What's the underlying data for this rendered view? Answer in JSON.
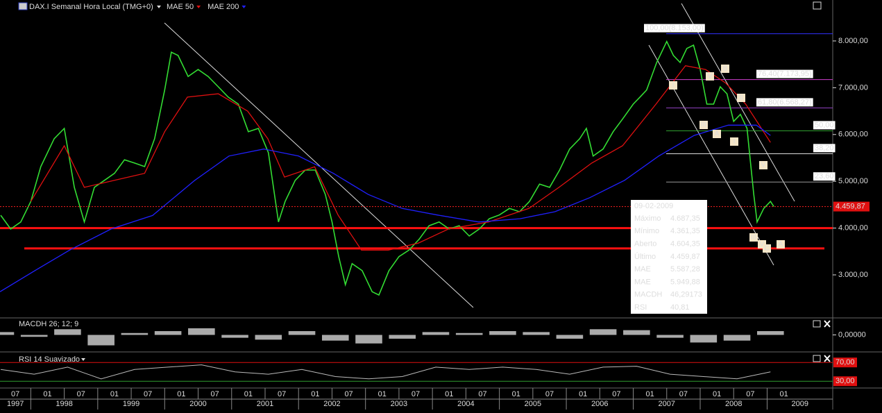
{
  "chart_data": {
    "type": "line",
    "title": "DAX.I Semanal Hora Local (TMG+0)",
    "x": [
      1997.55,
      1997.7,
      1997.85,
      1998.0,
      1998.15,
      1998.35,
      1998.5,
      1998.65,
      1998.8,
      1998.95,
      1999.1,
      1999.25,
      1999.4,
      1999.55,
      1999.7,
      1999.85,
      2000.0,
      2000.1,
      2000.2,
      2000.35,
      2000.5,
      2000.65,
      2000.8,
      2000.95,
      2001.1,
      2001.25,
      2001.4,
      2001.55,
      2001.7,
      2001.8,
      2001.95,
      2002.1,
      2002.25,
      2002.4,
      2002.5,
      2002.6,
      2002.7,
      2002.8,
      2002.95,
      2003.1,
      2003.2,
      2003.35,
      2003.5,
      2003.65,
      2003.8,
      2003.95,
      2004.1,
      2004.25,
      2004.4,
      2004.55,
      2004.7,
      2004.85,
      2005.0,
      2005.15,
      2005.3,
      2005.45,
      2005.6,
      2005.75,
      2005.9,
      2006.05,
      2006.2,
      2006.3,
      2006.4,
      2006.55,
      2006.7,
      2006.85,
      2007.0,
      2007.1,
      2007.2,
      2007.35,
      2007.5,
      2007.6,
      2007.7,
      2007.8,
      2007.9,
      2008.0,
      2008.1,
      2008.2,
      2008.3,
      2008.4,
      2008.5,
      2008.6,
      2008.7,
      2008.8,
      2008.85,
      2008.95,
      2009.05,
      2009.1
    ],
    "series": [
      {
        "color": "#33dd33",
        "values": [
          4275,
          3980,
          4130,
          4570,
          5315,
          5910,
          6130,
          4870,
          4130,
          4870,
          5020,
          5170,
          5460,
          5390,
          5315,
          5910,
          6950,
          7760,
          7690,
          7240,
          7390,
          7240,
          7020,
          6800,
          6650,
          6060,
          6130,
          5610,
          4130,
          4570,
          5020,
          5240,
          5240,
          4720,
          4130,
          3390,
          2790,
          3240,
          3090,
          2640,
          2570,
          3090,
          3390,
          3530,
          3760,
          4050,
          4130,
          3980,
          4050,
          3830,
          3980,
          4200,
          4280,
          4420,
          4350,
          4570,
          4940,
          4870,
          5240,
          5690,
          5910,
          6130,
          5540,
          5690,
          6060,
          6350,
          6650,
          6800,
          6950,
          7540,
          7990,
          7690,
          7540,
          7840,
          7910,
          7390,
          6650,
          6650,
          7020,
          6870,
          6280,
          6430,
          6130,
          4720,
          4130,
          4420,
          4570,
          4460
        ]
      },
      {
        "name": "MAE 50",
        "color": "#e01010",
        "x": [
          1998.0,
          1998.5,
          1998.8,
          1999.25,
          1999.7,
          2000.0,
          2000.34,
          2000.8,
          2001.24,
          2001.54,
          2001.79,
          2002.24,
          2002.59,
          2002.94,
          2003.34,
          2003.79,
          2004.24,
          2004.84,
          2005.44,
          2005.89,
          2006.38,
          2006.84,
          2007.34,
          2007.78,
          2008.08,
          2008.38,
          2008.68,
          2009.05
        ],
        "values": [
          4570,
          5760,
          4870,
          5020,
          5170,
          6060,
          6800,
          6870,
          6500,
          5910,
          5090,
          5310,
          4280,
          3530,
          3530,
          3680,
          3980,
          4130,
          4420,
          4870,
          5390,
          5760,
          6650,
          7470,
          7390,
          7100,
          6650,
          5830
        ]
      },
      {
        "name": "MAE 200",
        "color": "#2020ff",
        "x": [
          1997.54,
          1998.06,
          1998.58,
          1999.2,
          1999.82,
          2000.45,
          2000.96,
          2001.48,
          2002.0,
          2002.52,
          2003.04,
          2003.55,
          2004.07,
          2004.69,
          2005.31,
          2005.83,
          2006.35,
          2006.87,
          2007.38,
          2007.91,
          2008.42,
          2008.84,
          2009.05
        ],
        "values": [
          2640,
          3090,
          3530,
          3980,
          4270,
          5020,
          5540,
          5690,
          5540,
          5170,
          4720,
          4420,
          4280,
          4130,
          4200,
          4350,
          4650,
          5020,
          5540,
          5980,
          6200,
          6200,
          5980
        ]
      }
    ],
    "xlim": [
      1997.54,
      2009.98
    ],
    "ylim": [
      2080,
      8875
    ],
    "yticks": [
      {
        "value": 3000,
        "label": "3.000,00"
      },
      {
        "value": 4000,
        "label": "4.000,00"
      },
      {
        "value": 5000,
        "label": "5.000,00"
      },
      {
        "value": 6000,
        "label": "6.000,00"
      },
      {
        "value": 7000,
        "label": "7.000,00"
      },
      {
        "value": 8000,
        "label": "8.000,00"
      }
    ],
    "xticks": [
      {
        "value": 1997,
        "label": "1997"
      },
      {
        "value": 1998,
        "label": "1998"
      },
      {
        "value": 1999,
        "label": "1999"
      },
      {
        "value": 2000,
        "label": "2000"
      },
      {
        "value": 2001,
        "label": "2001"
      },
      {
        "value": 2002,
        "label": "2002"
      },
      {
        "value": 2003,
        "label": "2003"
      },
      {
        "value": 2004,
        "label": "2004"
      },
      {
        "value": 2005,
        "label": "2005"
      },
      {
        "value": 2006,
        "label": "2006"
      },
      {
        "value": 2007,
        "label": "2007"
      },
      {
        "value": 2008,
        "label": "2008"
      },
      {
        "value": 2009,
        "label": "2009"
      }
    ],
    "month_ticks": [
      {
        "value": 1997.5,
        "label": "07"
      },
      {
        "value": 1998.0,
        "label": "01"
      },
      {
        "value": 1998.5,
        "label": "07"
      },
      {
        "value": 1999.0,
        "label": "01"
      },
      {
        "value": 1999.5,
        "label": "07"
      },
      {
        "value": 2000.0,
        "label": "01"
      },
      {
        "value": 2000.5,
        "label": "07"
      },
      {
        "value": 2001.0,
        "label": "01"
      },
      {
        "value": 2001.5,
        "label": "07"
      },
      {
        "value": 2002.0,
        "label": "01"
      },
      {
        "value": 2002.5,
        "label": "07"
      },
      {
        "value": 2003.0,
        "label": "01"
      },
      {
        "value": 2003.5,
        "label": "07"
      },
      {
        "value": 2004.0,
        "label": "01"
      },
      {
        "value": 2004.5,
        "label": "07"
      },
      {
        "value": 2005.0,
        "label": "01"
      },
      {
        "value": 2005.5,
        "label": "07"
      },
      {
        "value": 2006.0,
        "label": "01"
      },
      {
        "value": 2006.5,
        "label": "07"
      },
      {
        "value": 2007.0,
        "label": "01"
      },
      {
        "value": 2007.5,
        "label": "07"
      },
      {
        "value": 2008.0,
        "label": "01"
      },
      {
        "value": 2008.5,
        "label": "07"
      },
      {
        "value": 2009.0,
        "label": "01"
      }
    ],
    "fib_levels": [
      {
        "value": 8153,
        "label": "100,00(8.153,00)",
        "color": "#3030ff"
      },
      {
        "value": 7173.95,
        "label": "76,40(7.173,95)",
        "color": "#d040d0"
      },
      {
        "value": 6568.27,
        "label": "61,80(6.568,27)",
        "color": "#9040c0"
      },
      {
        "value": 6078.75,
        "label": "50,00",
        "color": "#30a030"
      },
      {
        "value": 5589.2,
        "label": "38,20",
        "color": "#dddddd"
      },
      {
        "value": 4983.5,
        "label": "23,60",
        "color": "#999999"
      }
    ],
    "support_levels": [
      4000,
      3565
    ],
    "last_price": {
      "value": 4459.87,
      "label": "4.459,87"
    },
    "annotations": [
      "I",
      "V",
      "B",
      "II",
      "III",
      "A",
      "I",
      "V",
      "III",
      "V",
      "C",
      "A"
    ],
    "info_box": {
      "date": "09-02-2009",
      "rows": [
        [
          "Máximo",
          "4.687,35"
        ],
        [
          "Mínimo",
          "4.361,35"
        ],
        [
          "Aberto",
          "4.604,35"
        ],
        [
          "Último",
          "4.459,87"
        ],
        [
          "MAE",
          "5.587,28"
        ],
        [
          "MAE",
          "5.949,88"
        ],
        [
          "MACDH",
          "46,29173"
        ],
        [
          "RSI",
          "40,81"
        ]
      ]
    },
    "macdh": {
      "label": "MACDH 26; 12; 9",
      "color": "#aaaaaa",
      "x": [
        1997.55,
        1998.05,
        1998.55,
        1999.05,
        1999.55,
        2000.05,
        2000.55,
        2001.05,
        2001.55,
        2002.05,
        2002.55,
        2003.05,
        2003.55,
        2004.05,
        2004.55,
        2005.05,
        2005.55,
        2006.05,
        2006.55,
        2007.05,
        2007.55,
        2008.05,
        2008.55,
        2009.05
      ],
      "values": [
        30,
        -20,
        60,
        -110,
        20,
        40,
        70,
        -30,
        -50,
        40,
        -60,
        -90,
        -40,
        30,
        20,
        40,
        30,
        -40,
        60,
        50,
        -30,
        -80,
        -60,
        40
      ],
      "ylim": [
        -150,
        150
      ],
      "yticks": [
        {
          "value": 0,
          "label": "0,00000"
        }
      ]
    },
    "rsi": {
      "label": "RSI 14 Suavizado",
      "color": "#bbbbbb",
      "x": [
        1997.55,
        1998.05,
        1998.55,
        1999.05,
        1999.55,
        2000.05,
        2000.55,
        2001.05,
        2001.55,
        2002.05,
        2002.55,
        2003.05,
        2003.55,
        2004.05,
        2004.55,
        2005.05,
        2005.55,
        2006.05,
        2006.55,
        2007.05,
        2007.55,
        2008.05,
        2008.55,
        2009.05
      ],
      "values": [
        55,
        45,
        60,
        35,
        55,
        60,
        65,
        50,
        45,
        55,
        40,
        35,
        40,
        60,
        55,
        60,
        55,
        45,
        60,
        62,
        45,
        40,
        35,
        50
      ],
      "ylim": [
        17,
        91
      ],
      "yticks": [
        {
          "value": 70,
          "label": "70,00"
        },
        {
          "value": 30,
          "label": "30,00"
        }
      ]
    }
  }
}
